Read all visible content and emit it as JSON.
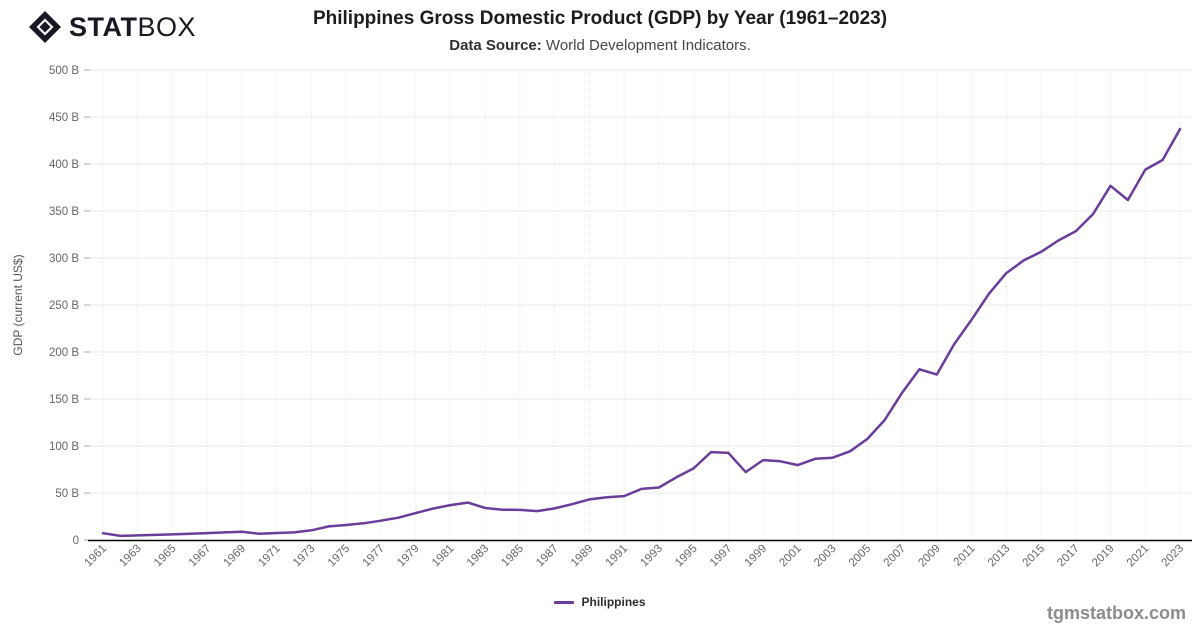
{
  "header": {
    "logo_stat": "STAT",
    "logo_box": "BOX",
    "title": "Philippines Gross Domestic Product (GDP) by Year (1961–2023)",
    "subtitle_label": "Data Source:",
    "subtitle_text": " World Development Indicators."
  },
  "legend": {
    "label": "Philippines"
  },
  "watermark": "tgmstatbox.com",
  "colors": {
    "line": "#6a3d9a",
    "axis": "#000000",
    "grid_horizontal": "#e8e8e8",
    "grid_vertical_dotted": "#d8d8d8",
    "tick_text": "#666666",
    "axis_title_text": "#555555",
    "logo": "#191923"
  },
  "chart_data": {
    "type": "line",
    "title": "Philippines Gross Domestic Product (GDP) by Year (1961–2023)",
    "subtitle": "Data Source: World Development Indicators.",
    "xlabel": "",
    "ylabel": "GDP (current US$)",
    "unit": "billions of current US$",
    "ylim": [
      0,
      500
    ],
    "ytick_step": 50,
    "ytick_labels": [
      "0",
      "50 B",
      "100 B",
      "150 B",
      "200 B",
      "250 B",
      "300 B",
      "350 B",
      "400 B",
      "450 B",
      "500 B"
    ],
    "xtick_years": [
      1961,
      1963,
      1965,
      1967,
      1969,
      1971,
      1973,
      1975,
      1977,
      1979,
      1981,
      1983,
      1985,
      1987,
      1989,
      1991,
      1993,
      1995,
      1997,
      1999,
      2001,
      2003,
      2005,
      2007,
      2009,
      2011,
      2013,
      2015,
      2017,
      2019,
      2021,
      2023
    ],
    "grid": {
      "horizontal": "solid",
      "vertical": "dotted"
    },
    "legend_position": "bottom-center",
    "x": [
      1961,
      1962,
      1963,
      1964,
      1965,
      1966,
      1967,
      1968,
      1969,
      1970,
      1971,
      1972,
      1973,
      1974,
      1975,
      1976,
      1977,
      1978,
      1979,
      1980,
      1981,
      1982,
      1983,
      1984,
      1985,
      1986,
      1987,
      1988,
      1989,
      1990,
      1991,
      1992,
      1993,
      1994,
      1995,
      1996,
      1997,
      1998,
      1999,
      2000,
      2001,
      2002,
      2003,
      2004,
      2005,
      2006,
      2007,
      2008,
      2009,
      2010,
      2011,
      2012,
      2013,
      2014,
      2015,
      2016,
      2017,
      2018,
      2019,
      2020,
      2021,
      2022,
      2023
    ],
    "series": [
      {
        "name": "Philippines",
        "color": "#6a3d9a",
        "values": [
          7.26,
          4.4,
          4.9,
          5.46,
          6.01,
          6.6,
          7.29,
          8.07,
          8.85,
          6.69,
          7.41,
          8.12,
          10.34,
          14.43,
          15.94,
          17.74,
          20.48,
          23.71,
          28.65,
          33.37,
          37.14,
          39.74,
          34.04,
          32.23,
          31.97,
          30.74,
          33.66,
          38.12,
          43.19,
          45.42,
          46.69,
          54.39,
          55.84,
          66.58,
          76.16,
          93.52,
          92.63,
          72.21,
          85.03,
          83.7,
          79.72,
          86.37,
          87.6,
          94.37,
          107.42,
          127.64,
          156.67,
          181.62,
          176.09,
          208.37,
          234.22,
          261.92,
          283.93,
          297.48,
          306.45,
          318.63,
          328.48,
          346.84,
          376.82,
          361.75,
          394.09,
          404.28,
          437.15
        ]
      }
    ]
  }
}
